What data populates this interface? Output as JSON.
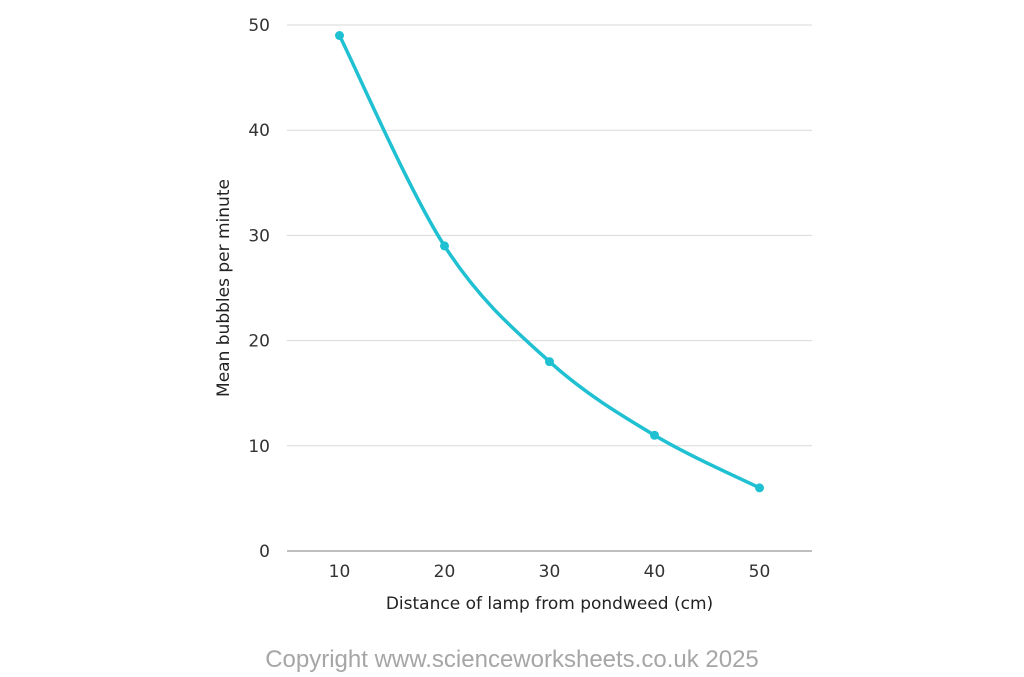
{
  "chart_data": {
    "type": "line",
    "title": "",
    "xlabel": "Distance of lamp from pondweed (cm)",
    "ylabel": "Mean bubbles per minute",
    "x": [
      10,
      20,
      30,
      40,
      50
    ],
    "series": [
      {
        "values": [
          49,
          29,
          18,
          11,
          6
        ]
      }
    ],
    "xlim": [
      5,
      55
    ],
    "ylim": [
      0,
      50
    ],
    "x_ticks": [
      "10",
      "20",
      "30",
      "40",
      "50"
    ],
    "y_ticks": [
      "0",
      "10",
      "20",
      "30",
      "40",
      "50"
    ],
    "grid": true,
    "smooth": true,
    "legend": "none",
    "colors": {
      "line": "#1fc0d2",
      "grid": "#d9d9d9",
      "axis": "#999999"
    }
  },
  "footer": {
    "copyright": "Copyright www.scienceworksheets.co.uk 2025"
  }
}
